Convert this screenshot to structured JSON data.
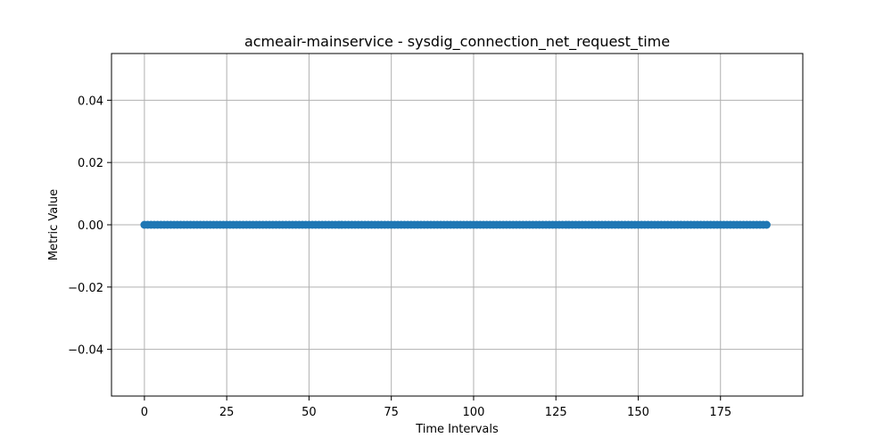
{
  "chart_data": {
    "type": "scatter",
    "title": "acmeair-mainservice - sysdig_connection_net_request_time",
    "xlabel": "Time Intervals",
    "ylabel": "Metric Value",
    "xlim": [
      -10,
      200
    ],
    "ylim": [
      -0.055,
      0.055
    ],
    "xticks": [
      0,
      25,
      50,
      75,
      100,
      125,
      150,
      175
    ],
    "xtick_labels": [
      "0",
      "25",
      "50",
      "75",
      "100",
      "125",
      "150",
      "175"
    ],
    "yticks": [
      -0.04,
      -0.02,
      0.0,
      0.02,
      0.04
    ],
    "ytick_labels": [
      "−0.04",
      "−0.02",
      "0.00",
      "0.02",
      "0.04"
    ],
    "grid": true,
    "series": [
      {
        "color": "#1f77b4",
        "marker": "circle",
        "x_start": 0,
        "x_end": 189,
        "x_step": 1,
        "y_constant": 0.0
      }
    ]
  }
}
